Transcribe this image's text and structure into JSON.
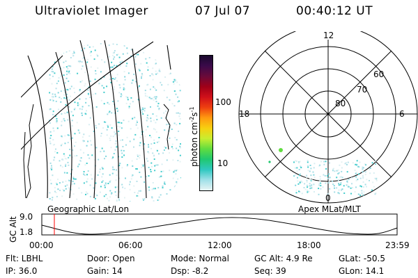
{
  "header": {
    "instrument": "Ultraviolet Imager",
    "date": "07 Jul 07",
    "time": "00:40:12 UT"
  },
  "colorbar": {
    "unit_label": "photon cm",
    "unit_sup1": "-2",
    "unit_mid": "s",
    "unit_sup2": "-1",
    "ticks": [
      "100",
      "10"
    ],
    "colors": [
      "#1a0a2e",
      "#3b0a4a",
      "#6a0a3a",
      "#a00018",
      "#d0101a",
      "#ee4010",
      "#ff9a10",
      "#f7d010",
      "#c8ee30",
      "#60dc40",
      "#20c870",
      "#30c8c0",
      "#a0e0e8",
      "#e8f4f4"
    ]
  },
  "polar": {
    "mlt_labels": {
      "top": "12",
      "left": "18",
      "right": "6",
      "bottom": "0"
    },
    "lat_labels": [
      "60",
      "70",
      "80"
    ]
  },
  "altitude_plot": {
    "left_label": "Geographic Lat/Lon",
    "right_label": "Apex MLat/MLT",
    "y_label": "GC Alt",
    "y_ticks": [
      "9.0",
      "1.8"
    ],
    "x_ticks": [
      "00:00",
      "06:00",
      "12:00",
      "18:00",
      "23:59"
    ]
  },
  "status": {
    "flt": "Flt: LBHL",
    "door": "Door: Open",
    "mode": "Mode: Normal",
    "gc_alt": "GC Alt: 4.9 Re",
    "glat": "GLat: -50.5",
    "ip": "IP: 36.0",
    "gain": "Gain: 14",
    "dsp": "Dsp:   -8.2",
    "seq": "Seq: 39",
    "glon": "GLon:  14.1"
  }
}
